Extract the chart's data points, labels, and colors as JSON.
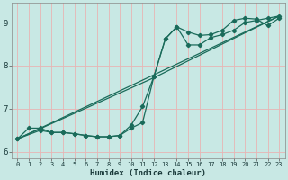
{
  "xlabel": "Humidex (Indice chaleur)",
  "bg_color": "#c8e8e4",
  "grid_color": "#e8b4b4",
  "line_color": "#1a6b5a",
  "xlim": [
    -0.5,
    23.5
  ],
  "ylim": [
    5.85,
    9.45
  ],
  "xticks": [
    0,
    1,
    2,
    3,
    4,
    5,
    6,
    7,
    8,
    9,
    10,
    11,
    12,
    13,
    14,
    15,
    16,
    17,
    18,
    19,
    20,
    21,
    22,
    23
  ],
  "yticks": [
    6,
    7,
    8,
    9
  ],
  "line1_x": [
    0,
    1,
    2,
    3,
    4,
    5,
    6,
    7,
    8,
    9,
    10,
    11,
    12,
    13,
    14,
    15,
    16,
    17,
    18,
    19,
    20,
    21,
    22,
    23
  ],
  "line1_y": [
    6.3,
    6.55,
    6.55,
    6.45,
    6.45,
    6.42,
    6.38,
    6.35,
    6.35,
    6.38,
    6.62,
    7.05,
    7.75,
    8.62,
    8.9,
    8.78,
    8.7,
    8.72,
    8.82,
    9.05,
    9.1,
    9.08,
    8.93,
    9.1
  ],
  "line2_x": [
    0,
    2,
    3,
    4,
    5,
    6,
    7,
    8,
    9,
    10,
    11,
    12,
    13,
    14,
    15,
    16,
    17,
    18,
    19,
    20,
    21,
    22,
    23
  ],
  "line2_y": [
    6.3,
    6.5,
    6.45,
    6.45,
    6.42,
    6.38,
    6.35,
    6.35,
    6.38,
    6.55,
    6.68,
    7.75,
    8.62,
    8.9,
    8.48,
    8.48,
    8.65,
    8.72,
    8.82,
    9.0,
    9.05,
    9.1,
    9.15
  ],
  "line3_x": [
    0,
    23
  ],
  "line3_y": [
    6.3,
    9.15
  ],
  "line4_x": [
    0,
    12,
    23
  ],
  "line4_y": [
    6.3,
    7.72,
    9.15
  ]
}
